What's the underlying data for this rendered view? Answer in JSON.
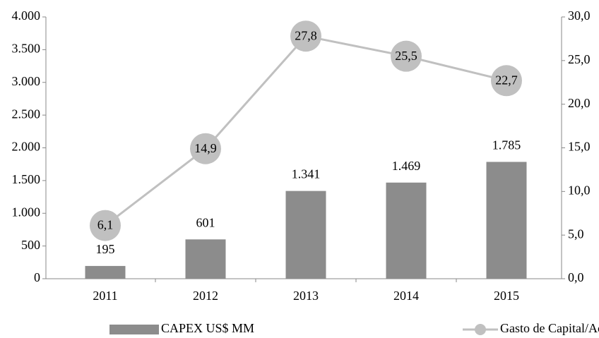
{
  "chart_data": {
    "type": "combo",
    "categories": [
      "2011",
      "2012",
      "2013",
      "2014",
      "2015"
    ],
    "series": [
      {
        "name": "CAPEX US$ MM",
        "type": "bar",
        "color": "#8c8c8c",
        "values": [
          195,
          601,
          1341,
          1469,
          1785
        ],
        "value_labels": [
          "195",
          "601",
          "1.341",
          "1.469",
          "1.785"
        ]
      },
      {
        "name": "Gasto de Capital/Activos (%)",
        "type": "line",
        "axis": "y2",
        "color": "#c0c0c0",
        "values": [
          6.1,
          14.9,
          27.8,
          25.5,
          22.7
        ],
        "value_labels": [
          "6,1",
          "14,9",
          "27,8",
          "25,5",
          "22,7"
        ]
      }
    ],
    "ylim": [
      0,
      4000
    ],
    "yticks": [
      0,
      500,
      {
        "value": 1000,
        "label": "1.000"
      },
      {
        "value": 1500,
        "label": "1.500"
      },
      {
        "value": 2000,
        "label": "2.000"
      },
      {
        "value": 2500,
        "label": "2.500"
      },
      {
        "value": 3000,
        "label": "3.000"
      },
      {
        "value": 3500,
        "label": "3.500"
      },
      {
        "value": 4000,
        "label": "4.000"
      }
    ],
    "y2lim": [
      0,
      30
    ],
    "y2ticks": [
      {
        "value": 0,
        "label": "0,0"
      },
      {
        "value": 5,
        "label": "5,0"
      },
      {
        "value": 10,
        "label": "10,0"
      },
      {
        "value": 15,
        "label": "15,0"
      },
      {
        "value": 20,
        "label": "20,0"
      },
      {
        "value": 25,
        "label": "25,0"
      },
      {
        "value": 30,
        "label": "30,0"
      }
    ],
    "grid": false,
    "legend": "bottom"
  }
}
